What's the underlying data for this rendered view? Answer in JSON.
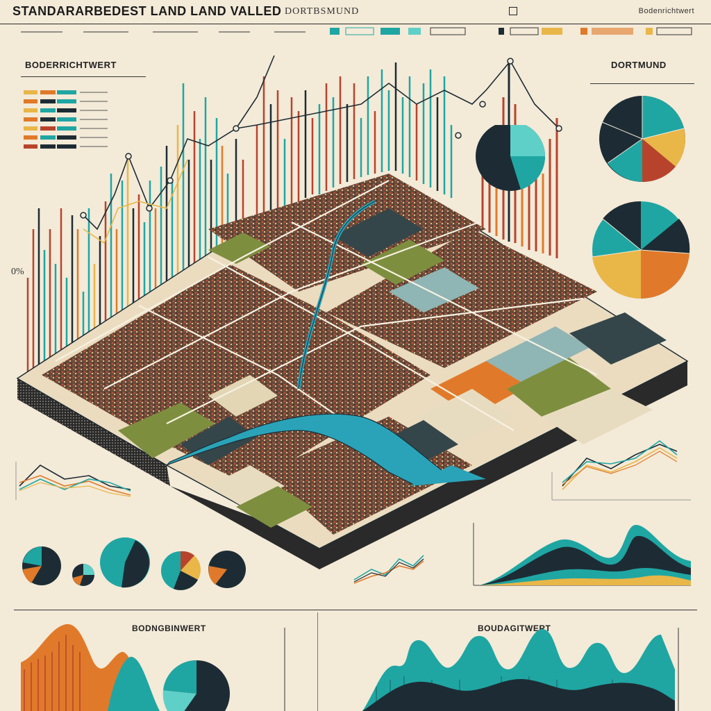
{
  "header": {
    "title": "STANDARARBEDEST LAND LAND VALLED",
    "city": "DORTBSMUND",
    "tag": "Bodenrichtwert"
  },
  "left_panel": {
    "label": "BODERRICHTWERT",
    "percent_label": "0%"
  },
  "right_panel": {
    "label": "DORTMUND"
  },
  "bottom_left": {
    "label": "BODNGBINWERT"
  },
  "bottom_right": {
    "label": "BOUDAGITWERT"
  },
  "colors": {
    "background": "#f3ead8",
    "teal": "#1fa6a3",
    "dark_navy": "#1d2c34",
    "orange": "#e07a2a",
    "rust": "#b8432c",
    "yellow": "#e9b648",
    "olive": "#7d8f3f",
    "river": "#2aa3b8"
  }
}
